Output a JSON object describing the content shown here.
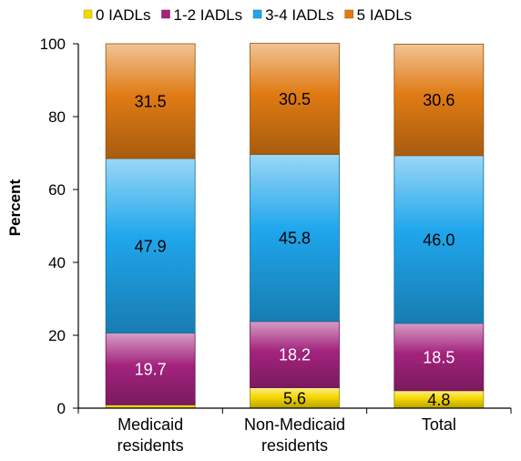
{
  "chart_data": {
    "type": "bar",
    "stacked": true,
    "ylabel": "Percent",
    "ylim": [
      0,
      100
    ],
    "yticks": [
      0,
      20,
      40,
      60,
      80,
      100
    ],
    "grid": false,
    "legend_position": "top",
    "categories": [
      [
        "Medicaid",
        "residents"
      ],
      [
        "Non-Medicaid",
        "residents"
      ],
      [
        "Total"
      ]
    ],
    "series": [
      {
        "name": "0 IADLs",
        "values": [
          0.9,
          5.6,
          4.8
        ],
        "labels": [
          "",
          "5.6",
          "4.8"
        ],
        "color": "#f5d800",
        "label_color": "#000000"
      },
      {
        "name": "1-2 IADLs",
        "values": [
          19.7,
          18.2,
          18.5
        ],
        "labels": [
          "19.7",
          "18.2",
          "18.5"
        ],
        "color": "#a3237d",
        "label_color": "#ffffff"
      },
      {
        "name": "3-4 IADLs",
        "values": [
          47.9,
          45.8,
          46.0
        ],
        "labels": [
          "47.9",
          "45.8",
          "46.0"
        ],
        "color": "#1fa6ec",
        "label_color": "#000000"
      },
      {
        "name": "5 IADLs",
        "values": [
          31.5,
          30.5,
          30.6
        ],
        "labels": [
          "31.5",
          "30.5",
          "30.6"
        ],
        "color": "#e07b14",
        "label_color": "#000000"
      }
    ]
  }
}
